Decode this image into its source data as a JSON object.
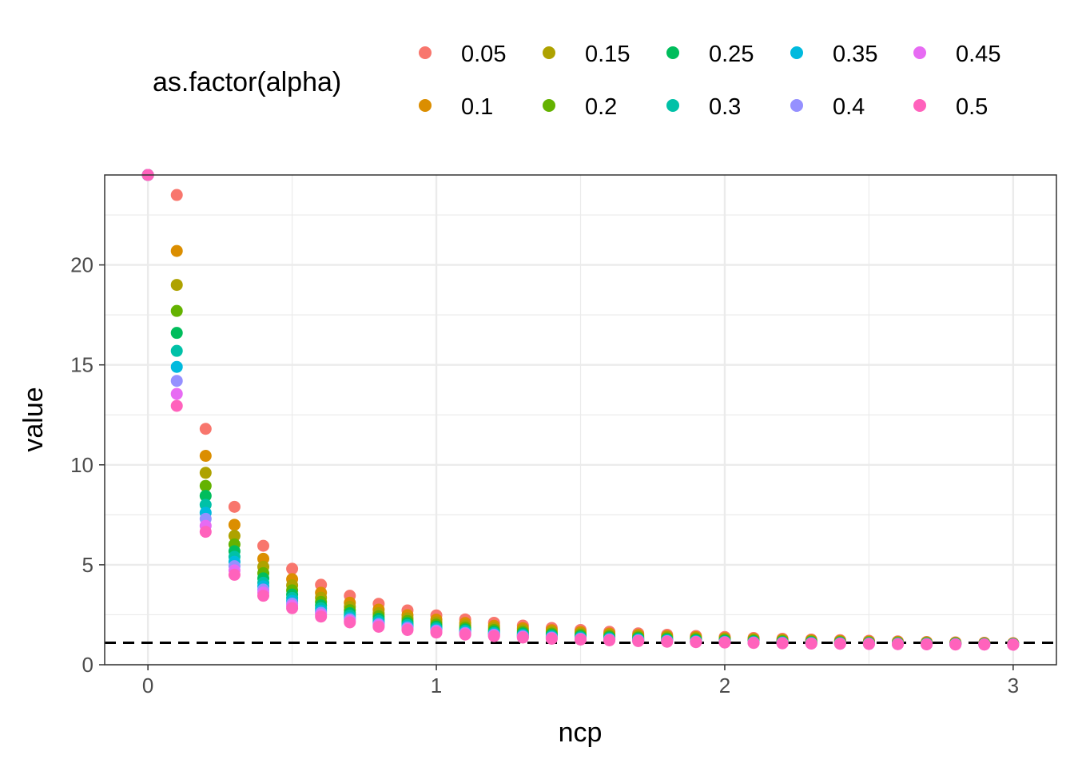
{
  "chart_data": {
    "type": "scatter",
    "title": "",
    "xlabel": "ncp",
    "ylabel": "value",
    "xlim": [
      -0.15,
      3.15
    ],
    "ylim": [
      0,
      24.5
    ],
    "x_ticks": [
      0,
      1,
      2,
      3
    ],
    "y_ticks": [
      0,
      5,
      10,
      15,
      20
    ],
    "grid": true,
    "legend": {
      "title": "as.factor(alpha)",
      "position": "top",
      "columns": 5
    },
    "reference_line": {
      "y": 1.1,
      "style": "dashed",
      "color": "#000000"
    },
    "x": [
      0,
      0.1,
      0.2,
      0.3,
      0.4,
      0.5,
      0.6,
      0.7,
      0.8,
      0.9,
      1.0,
      1.1,
      1.2,
      1.3,
      1.4,
      1.5,
      1.6,
      1.7,
      1.8,
      1.9,
      2.0,
      2.1,
      2.2,
      2.3,
      2.4,
      2.5,
      2.6,
      2.7,
      2.8,
      2.9,
      3.0
    ],
    "series": [
      {
        "name": "0.05",
        "color": "#F8766D",
        "values": [
          24.5,
          23.5,
          11.8,
          7.9,
          5.95,
          4.8,
          4.0,
          3.45,
          3.05,
          2.72,
          2.47,
          2.27,
          2.1,
          1.96,
          1.84,
          1.74,
          1.65,
          1.57,
          1.5,
          1.44,
          1.39,
          1.34,
          1.3,
          1.26,
          1.23,
          1.2,
          1.17,
          1.14,
          1.12,
          1.1,
          1.08
        ]
      },
      {
        "name": "0.1",
        "color": "#DB8E00",
        "values": [
          24.5,
          20.7,
          10.45,
          7.0,
          5.3,
          4.28,
          3.6,
          3.1,
          2.76,
          2.48,
          2.26,
          2.09,
          1.95,
          1.83,
          1.73,
          1.64,
          1.56,
          1.49,
          1.43,
          1.38,
          1.33,
          1.29,
          1.25,
          1.22,
          1.19,
          1.16,
          1.14,
          1.12,
          1.1,
          1.08,
          1.06
        ]
      },
      {
        "name": "0.15",
        "color": "#AEA200",
        "values": [
          24.5,
          19.0,
          9.6,
          6.45,
          4.9,
          3.97,
          3.35,
          2.9,
          2.58,
          2.32,
          2.12,
          1.97,
          1.84,
          1.73,
          1.64,
          1.56,
          1.49,
          1.43,
          1.38,
          1.33,
          1.29,
          1.25,
          1.22,
          1.19,
          1.16,
          1.14,
          1.12,
          1.1,
          1.08,
          1.06,
          1.05
        ]
      },
      {
        "name": "0.2",
        "color": "#64B200",
        "values": [
          24.5,
          17.7,
          8.95,
          6.02,
          4.58,
          3.72,
          3.14,
          2.73,
          2.43,
          2.19,
          2.01,
          1.86,
          1.74,
          1.64,
          1.56,
          1.49,
          1.43,
          1.37,
          1.32,
          1.28,
          1.24,
          1.21,
          1.18,
          1.15,
          1.13,
          1.11,
          1.09,
          1.07,
          1.06,
          1.05,
          1.04
        ]
      },
      {
        "name": "0.25",
        "color": "#00BD5C",
        "values": [
          24.5,
          16.6,
          8.45,
          5.68,
          4.32,
          3.51,
          2.97,
          2.58,
          2.3,
          2.08,
          1.91,
          1.77,
          1.66,
          1.57,
          1.49,
          1.42,
          1.37,
          1.32,
          1.27,
          1.23,
          1.2,
          1.17,
          1.14,
          1.12,
          1.1,
          1.08,
          1.07,
          1.06,
          1.05,
          1.04,
          1.03
        ]
      },
      {
        "name": "0.3",
        "color": "#00C1A7",
        "values": [
          24.5,
          15.7,
          8.0,
          5.4,
          4.1,
          3.34,
          2.83,
          2.46,
          2.19,
          1.99,
          1.83,
          1.7,
          1.59,
          1.5,
          1.43,
          1.37,
          1.32,
          1.27,
          1.23,
          1.19,
          1.16,
          1.14,
          1.12,
          1.1,
          1.08,
          1.07,
          1.06,
          1.05,
          1.04,
          1.03,
          1.02
        ]
      },
      {
        "name": "0.35",
        "color": "#00BADE",
        "values": [
          24.5,
          14.9,
          7.6,
          5.15,
          3.92,
          3.19,
          2.7,
          2.35,
          2.1,
          1.91,
          1.76,
          1.64,
          1.54,
          1.46,
          1.39,
          1.33,
          1.28,
          1.24,
          1.2,
          1.17,
          1.14,
          1.12,
          1.1,
          1.08,
          1.07,
          1.06,
          1.05,
          1.04,
          1.03,
          1.02,
          1.02
        ]
      },
      {
        "name": "0.4",
        "color": "#9590FF",
        "values": [
          24.5,
          14.2,
          7.3,
          4.93,
          3.76,
          3.06,
          2.6,
          2.27,
          2.03,
          1.85,
          1.71,
          1.59,
          1.5,
          1.42,
          1.36,
          1.3,
          1.26,
          1.22,
          1.18,
          1.15,
          1.13,
          1.11,
          1.09,
          1.07,
          1.06,
          1.05,
          1.04,
          1.03,
          1.02,
          1.02,
          1.01
        ]
      },
      {
        "name": "0.45",
        "color": "#E76BF3",
        "values": [
          24.5,
          13.55,
          6.95,
          4.72,
          3.61,
          2.95,
          2.51,
          2.19,
          1.97,
          1.79,
          1.66,
          1.55,
          1.46,
          1.39,
          1.33,
          1.28,
          1.24,
          1.2,
          1.17,
          1.14,
          1.12,
          1.1,
          1.08,
          1.06,
          1.05,
          1.04,
          1.03,
          1.02,
          1.02,
          1.01,
          1.01
        ]
      },
      {
        "name": "0.5",
        "color": "#FF62BC",
        "values": [
          24.5,
          12.95,
          6.65,
          4.5,
          3.45,
          2.83,
          2.41,
          2.12,
          1.9,
          1.74,
          1.61,
          1.51,
          1.43,
          1.36,
          1.3,
          1.26,
          1.22,
          1.18,
          1.15,
          1.13,
          1.11,
          1.09,
          1.07,
          1.06,
          1.05,
          1.04,
          1.03,
          1.02,
          1.01,
          1.01,
          1.0
        ]
      }
    ]
  }
}
